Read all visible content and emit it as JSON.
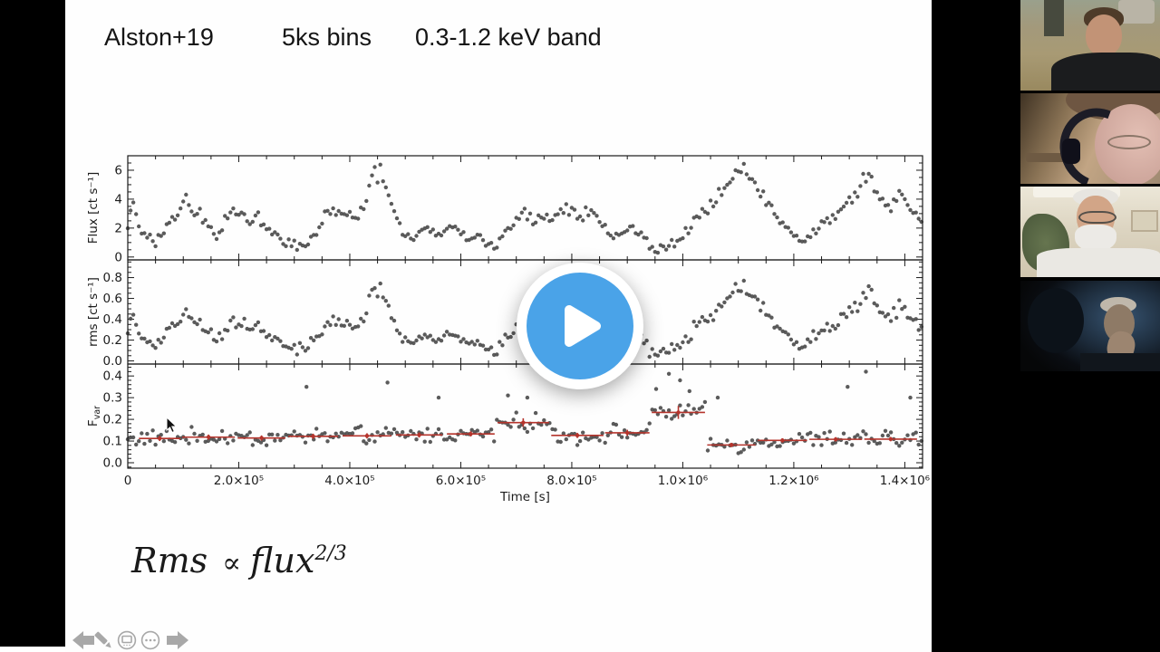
{
  "slide": {
    "title_parts": [
      {
        "text": "Alston+19"
      },
      {
        "text": "5ks bins"
      },
      {
        "text": "0.3-1.2 keV band"
      }
    ],
    "formula": {
      "lhs": "Rms",
      "prop_symbol": "∝",
      "base": "flux",
      "exponent": "2/3"
    }
  },
  "player": {
    "play_icon": "play-triangle",
    "button_color": "#4aa3e8",
    "ring_color": "#ffffff"
  },
  "presenter_toolbar": {
    "color": "#a8a8a8",
    "icons": [
      "previous-slide-arrow",
      "pen",
      "see-all-slides",
      "more-options",
      "next-slide-arrow"
    ]
  },
  "conference": {
    "participant_count": 4
  },
  "chart_data": {
    "type": "scatter",
    "title": "",
    "xlabel": "Time [s]",
    "x_unit_ks": 1000,
    "x_range_ks": [
      0,
      1432
    ],
    "x_major_ticks_ks": [
      0,
      200,
      400,
      600,
      800,
      1000,
      1200,
      1400
    ],
    "x_tick_labels": [
      "0",
      "2.0×10⁵",
      "4.0×10⁵",
      "6.0×10⁵",
      "8.0×10⁵",
      "1.0×10⁶",
      "1.2×10⁶",
      "1.4×10⁶"
    ],
    "x_minor_step_ks": 50,
    "sample_step_ks": 5,
    "point_color": "#4d4d4d",
    "point_radius": 2.2,
    "frame_color": "#1a1a1a",
    "red_color": "#b5342c",
    "panels": [
      {
        "ylabel": "Flux [ct s⁻¹]",
        "y_range": [
          -0.2,
          7.0
        ],
        "y_major_ticks": [
          0,
          2,
          4,
          6
        ],
        "y_tick_labels": [
          "0",
          "2",
          "4",
          "6"
        ],
        "y_minor_step": 0.5,
        "seed": 20240,
        "noise_base": 0.28,
        "noise_scale": 0.1,
        "clamp": [
          0.12,
          6.9
        ],
        "envelope_ks": [
          [
            0,
            2.4
          ],
          [
            10,
            3.8
          ],
          [
            20,
            2.0
          ],
          [
            35,
            1.5
          ],
          [
            50,
            1.0
          ],
          [
            60,
            1.6
          ],
          [
            75,
            2.3
          ],
          [
            90,
            2.8
          ],
          [
            100,
            4.4
          ],
          [
            115,
            3.4
          ],
          [
            130,
            3.0
          ],
          [
            145,
            2.2
          ],
          [
            160,
            1.4
          ],
          [
            175,
            2.4
          ],
          [
            190,
            3.2
          ],
          [
            205,
            2.9
          ],
          [
            220,
            2.1
          ],
          [
            235,
            3.1
          ],
          [
            250,
            2.0
          ],
          [
            265,
            1.5
          ],
          [
            280,
            1.1
          ],
          [
            295,
            0.9
          ],
          [
            310,
            0.8
          ],
          [
            325,
            0.7
          ],
          [
            340,
            1.8
          ],
          [
            355,
            2.8
          ],
          [
            370,
            3.2
          ],
          [
            385,
            2.7
          ],
          [
            400,
            3.3
          ],
          [
            415,
            2.6
          ],
          [
            430,
            4.2
          ],
          [
            445,
            5.6
          ],
          [
            455,
            6.2
          ],
          [
            465,
            4.6
          ],
          [
            475,
            3.6
          ],
          [
            485,
            2.9
          ],
          [
            495,
            1.9
          ],
          [
            510,
            1.4
          ],
          [
            525,
            1.7
          ],
          [
            540,
            2.0
          ],
          [
            555,
            1.5
          ],
          [
            570,
            1.9
          ],
          [
            585,
            2.2
          ],
          [
            600,
            1.6
          ],
          [
            615,
            1.2
          ],
          [
            630,
            1.5
          ],
          [
            645,
            0.9
          ],
          [
            660,
            0.8
          ],
          [
            675,
            1.4
          ],
          [
            690,
            2.1
          ],
          [
            705,
            2.7
          ],
          [
            715,
            3.2
          ],
          [
            730,
            2.3
          ],
          [
            745,
            2.6
          ],
          [
            760,
            2.5
          ],
          [
            775,
            3.0
          ],
          [
            790,
            3.4
          ],
          [
            805,
            3.0
          ],
          [
            820,
            2.9
          ],
          [
            835,
            3.2
          ],
          [
            850,
            2.6
          ],
          [
            865,
            1.9
          ],
          [
            880,
            1.4
          ],
          [
            895,
            1.7
          ],
          [
            910,
            1.9
          ],
          [
            925,
            1.4
          ],
          [
            940,
            0.8
          ],
          [
            955,
            0.5
          ],
          [
            970,
            0.7
          ],
          [
            985,
            1.0
          ],
          [
            1000,
            1.5
          ],
          [
            1015,
            2.1
          ],
          [
            1030,
            2.7
          ],
          [
            1045,
            3.4
          ],
          [
            1060,
            4.1
          ],
          [
            1075,
            4.4
          ],
          [
            1090,
            5.1
          ],
          [
            1105,
            6.0
          ],
          [
            1112,
            6.4
          ],
          [
            1125,
            5.4
          ],
          [
            1140,
            4.5
          ],
          [
            1155,
            3.8
          ],
          [
            1170,
            2.8
          ],
          [
            1185,
            2.1
          ],
          [
            1200,
            1.5
          ],
          [
            1215,
            1.1
          ],
          [
            1230,
            1.5
          ],
          [
            1245,
            1.9
          ],
          [
            1260,
            2.4
          ],
          [
            1275,
            3.0
          ],
          [
            1290,
            3.6
          ],
          [
            1305,
            4.2
          ],
          [
            1320,
            5.0
          ],
          [
            1332,
            5.9
          ],
          [
            1345,
            4.8
          ],
          [
            1360,
            3.9
          ],
          [
            1375,
            3.3
          ],
          [
            1390,
            4.3
          ],
          [
            1405,
            3.6
          ],
          [
            1420,
            2.9
          ],
          [
            1430,
            2.5
          ]
        ]
      },
      {
        "ylabel": "rms [ct s⁻¹]",
        "y_range": [
          -0.03,
          0.97
        ],
        "y_major_ticks": [
          0,
          0.2,
          0.4,
          0.6,
          0.8
        ],
        "y_tick_labels": [
          "0.0",
          "0.2",
          "0.4",
          "0.6",
          "0.8"
        ],
        "y_minor_step": 0.05,
        "seed": 777,
        "derived_from_flux": {
          "offset": 0.02,
          "scale": 0.115,
          "noise": 0.055
        },
        "clamp": [
          0.02,
          0.93
        ]
      },
      {
        "ylabel": "F_var",
        "y_range": [
          -0.025,
          0.455
        ],
        "y_major_ticks": [
          0,
          0.1,
          0.2,
          0.3,
          0.4
        ],
        "y_tick_labels": [
          "0.0",
          "0.1",
          "0.2",
          "0.3",
          "0.4"
        ],
        "y_minor_step": 0.02,
        "seed": 1234,
        "noise": 0.048,
        "clamp": [
          0.03,
          0.44
        ],
        "segments_ks": [
          [
            20,
            95,
            0.112,
            0.012
          ],
          [
            98,
            193,
            0.118,
            0.012
          ],
          [
            198,
            284,
            0.114,
            0.012
          ],
          [
            289,
            379,
            0.122,
            0.012
          ],
          [
            387,
            475,
            0.124,
            0.012
          ],
          [
            483,
            567,
            0.128,
            0.012
          ],
          [
            575,
            661,
            0.133,
            0.012
          ],
          [
            666,
            759,
            0.185,
            0.02
          ],
          [
            763,
            857,
            0.126,
            0.012
          ],
          [
            860,
            940,
            0.138,
            0.014
          ],
          [
            944,
            1040,
            0.232,
            0.03
          ],
          [
            1044,
            1131,
            0.082,
            0.01
          ],
          [
            1135,
            1224,
            0.103,
            0.01
          ],
          [
            1228,
            1323,
            0.108,
            0.01
          ],
          [
            1327,
            1422,
            0.109,
            0.01
          ]
        ],
        "outliers_ks": [
          [
            322,
            0.35
          ],
          [
            468,
            0.37
          ],
          [
            560,
            0.3
          ],
          [
            685,
            0.31
          ],
          [
            720,
            0.3
          ],
          [
            810,
            0.4
          ],
          [
            952,
            0.34
          ],
          [
            975,
            0.41
          ],
          [
            995,
            0.38
          ],
          [
            1012,
            0.33
          ],
          [
            1063,
            0.3
          ],
          [
            1297,
            0.35
          ],
          [
            1330,
            0.42
          ],
          [
            1410,
            0.3
          ]
        ]
      }
    ]
  }
}
